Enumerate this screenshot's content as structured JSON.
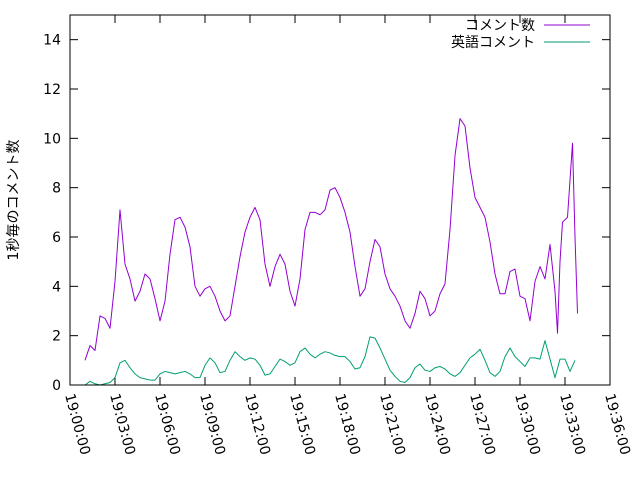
{
  "chart_data": {
    "type": "line",
    "title": "",
    "xlabel": "",
    "ylabel": "1秒毎のコメント数",
    "ylim": [
      0,
      15
    ],
    "yticks": [
      0,
      2,
      4,
      6,
      8,
      10,
      12,
      14
    ],
    "xlim": [
      "19:00:00",
      "19:36:00"
    ],
    "xticks": [
      "19:00:00",
      "19:03:00",
      "19:06:00",
      "19:09:00",
      "19:12:00",
      "19:15:00",
      "19:18:00",
      "19:21:00",
      "19:24:00",
      "19:27:00",
      "19:30:00",
      "19:33:00",
      "19:36:00"
    ],
    "grid": false,
    "legend_position": "top-right",
    "series": [
      {
        "name": "コメント数",
        "color": "#9400d3",
        "points": [
          [
            "19:01:00",
            1.0
          ],
          [
            "19:01:20",
            1.6
          ],
          [
            "19:01:40",
            1.4
          ],
          [
            "19:02:00",
            2.8
          ],
          [
            "19:02:20",
            2.7
          ],
          [
            "19:02:40",
            2.3
          ],
          [
            "19:03:00",
            4.2
          ],
          [
            "19:03:20",
            7.1
          ],
          [
            "19:03:40",
            4.9
          ],
          [
            "19:04:00",
            4.3
          ],
          [
            "19:04:20",
            3.4
          ],
          [
            "19:04:40",
            3.8
          ],
          [
            "19:05:00",
            4.5
          ],
          [
            "19:05:20",
            4.3
          ],
          [
            "19:05:40",
            3.5
          ],
          [
            "19:06:00",
            2.6
          ],
          [
            "19:06:20",
            3.4
          ],
          [
            "19:06:40",
            5.3
          ],
          [
            "19:07:00",
            6.7
          ],
          [
            "19:07:20",
            6.8
          ],
          [
            "19:07:40",
            6.4
          ],
          [
            "19:08:00",
            5.6
          ],
          [
            "19:08:20",
            4.0
          ],
          [
            "19:08:40",
            3.6
          ],
          [
            "19:09:00",
            3.9
          ],
          [
            "19:09:20",
            4.0
          ],
          [
            "19:09:40",
            3.6
          ],
          [
            "19:10:00",
            3.0
          ],
          [
            "19:10:20",
            2.6
          ],
          [
            "19:10:40",
            2.8
          ],
          [
            "19:11:00",
            4.0
          ],
          [
            "19:11:20",
            5.2
          ],
          [
            "19:11:40",
            6.2
          ],
          [
            "19:12:00",
            6.8
          ],
          [
            "19:12:20",
            7.2
          ],
          [
            "19:12:40",
            6.7
          ],
          [
            "19:13:00",
            4.9
          ],
          [
            "19:13:20",
            4.0
          ],
          [
            "19:13:40",
            4.8
          ],
          [
            "19:14:00",
            5.3
          ],
          [
            "19:14:20",
            4.9
          ],
          [
            "19:14:40",
            3.8
          ],
          [
            "19:15:00",
            3.2
          ],
          [
            "19:15:20",
            4.3
          ],
          [
            "19:15:40",
            6.3
          ],
          [
            "19:16:00",
            7.0
          ],
          [
            "19:16:20",
            7.0
          ],
          [
            "19:16:40",
            6.9
          ],
          [
            "19:17:00",
            7.1
          ],
          [
            "19:17:20",
            7.9
          ],
          [
            "19:17:40",
            8.0
          ],
          [
            "19:18:00",
            7.6
          ],
          [
            "19:18:20",
            7.0
          ],
          [
            "19:18:40",
            6.2
          ],
          [
            "19:19:00",
            4.8
          ],
          [
            "19:19:20",
            3.6
          ],
          [
            "19:19:40",
            3.9
          ],
          [
            "19:20:00",
            5.0
          ],
          [
            "19:20:20",
            5.9
          ],
          [
            "19:20:40",
            5.6
          ],
          [
            "19:21:00",
            4.5
          ],
          [
            "19:21:20",
            3.9
          ],
          [
            "19:21:40",
            3.6
          ],
          [
            "19:22:00",
            3.2
          ],
          [
            "19:22:20",
            2.6
          ],
          [
            "19:22:40",
            2.3
          ],
          [
            "19:23:00",
            2.9
          ],
          [
            "19:23:20",
            3.8
          ],
          [
            "19:23:40",
            3.5
          ],
          [
            "19:24:00",
            2.8
          ],
          [
            "19:24:20",
            3.0
          ],
          [
            "19:24:40",
            3.7
          ],
          [
            "19:25:00",
            4.1
          ],
          [
            "19:25:20",
            6.3
          ],
          [
            "19:25:40",
            9.3
          ],
          [
            "19:26:00",
            10.8
          ],
          [
            "19:26:20",
            10.5
          ],
          [
            "19:26:40",
            8.8
          ],
          [
            "19:27:00",
            7.6
          ],
          [
            "19:27:20",
            7.2
          ],
          [
            "19:27:40",
            6.8
          ],
          [
            "19:28:00",
            5.8
          ],
          [
            "19:28:20",
            4.5
          ],
          [
            "19:28:40",
            3.7
          ],
          [
            "19:29:00",
            3.7
          ],
          [
            "19:29:20",
            4.6
          ],
          [
            "19:29:40",
            4.7
          ],
          [
            "19:30:00",
            3.6
          ],
          [
            "19:30:20",
            3.5
          ],
          [
            "19:30:40",
            2.6
          ],
          [
            "19:31:00",
            4.2
          ],
          [
            "19:31:20",
            4.8
          ],
          [
            "19:31:40",
            4.3
          ],
          [
            "19:32:00",
            5.7
          ],
          [
            "19:32:20",
            3.8
          ],
          [
            "19:32:30",
            2.1
          ],
          [
            "19:32:40",
            5.0
          ],
          [
            "19:32:50",
            6.6
          ],
          [
            "19:33:10",
            6.8
          ],
          [
            "19:33:30",
            9.8
          ],
          [
            "19:33:40",
            6.0
          ],
          [
            "19:33:50",
            2.9
          ]
        ]
      },
      {
        "name": "英語コメント",
        "color": "#009e73",
        "points": [
          [
            "19:01:00",
            0.0
          ],
          [
            "19:01:20",
            0.15
          ],
          [
            "19:01:40",
            0.05
          ],
          [
            "19:02:00",
            0.0
          ],
          [
            "19:02:20",
            0.05
          ],
          [
            "19:02:40",
            0.1
          ],
          [
            "19:03:00",
            0.3
          ],
          [
            "19:03:20",
            0.9
          ],
          [
            "19:03:40",
            1.0
          ],
          [
            "19:04:00",
            0.7
          ],
          [
            "19:04:20",
            0.45
          ],
          [
            "19:04:40",
            0.3
          ],
          [
            "19:05:00",
            0.25
          ],
          [
            "19:05:20",
            0.2
          ],
          [
            "19:05:40",
            0.2
          ],
          [
            "19:06:00",
            0.45
          ],
          [
            "19:06:20",
            0.55
          ],
          [
            "19:06:40",
            0.5
          ],
          [
            "19:07:00",
            0.45
          ],
          [
            "19:07:20",
            0.5
          ],
          [
            "19:07:40",
            0.55
          ],
          [
            "19:08:00",
            0.45
          ],
          [
            "19:08:20",
            0.3
          ],
          [
            "19:08:40",
            0.3
          ],
          [
            "19:09:00",
            0.8
          ],
          [
            "19:09:20",
            1.1
          ],
          [
            "19:09:40",
            0.9
          ],
          [
            "19:10:00",
            0.5
          ],
          [
            "19:10:20",
            0.55
          ],
          [
            "19:10:40",
            1.0
          ],
          [
            "19:11:00",
            1.35
          ],
          [
            "19:11:20",
            1.15
          ],
          [
            "19:11:40",
            1.0
          ],
          [
            "19:12:00",
            1.1
          ],
          [
            "19:12:20",
            1.05
          ],
          [
            "19:12:40",
            0.8
          ],
          [
            "19:13:00",
            0.4
          ],
          [
            "19:13:20",
            0.45
          ],
          [
            "19:13:40",
            0.75
          ],
          [
            "19:14:00",
            1.05
          ],
          [
            "19:14:20",
            0.95
          ],
          [
            "19:14:40",
            0.8
          ],
          [
            "19:15:00",
            0.9
          ],
          [
            "19:15:20",
            1.35
          ],
          [
            "19:15:40",
            1.5
          ],
          [
            "19:16:00",
            1.25
          ],
          [
            "19:16:20",
            1.1
          ],
          [
            "19:16:40",
            1.25
          ],
          [
            "19:17:00",
            1.35
          ],
          [
            "19:17:20",
            1.3
          ],
          [
            "19:17:40",
            1.2
          ],
          [
            "19:18:00",
            1.15
          ],
          [
            "19:18:20",
            1.15
          ],
          [
            "19:18:40",
            0.95
          ],
          [
            "19:19:00",
            0.65
          ],
          [
            "19:19:20",
            0.7
          ],
          [
            "19:19:40",
            1.15
          ],
          [
            "19:20:00",
            1.95
          ],
          [
            "19:20:20",
            1.9
          ],
          [
            "19:20:40",
            1.5
          ],
          [
            "19:21:00",
            1.05
          ],
          [
            "19:21:20",
            0.6
          ],
          [
            "19:21:40",
            0.35
          ],
          [
            "19:22:00",
            0.15
          ],
          [
            "19:22:20",
            0.1
          ],
          [
            "19:22:40",
            0.3
          ],
          [
            "19:23:00",
            0.7
          ],
          [
            "19:23:20",
            0.85
          ],
          [
            "19:23:40",
            0.6
          ],
          [
            "19:24:00",
            0.55
          ],
          [
            "19:24:20",
            0.7
          ],
          [
            "19:24:40",
            0.75
          ],
          [
            "19:25:00",
            0.65
          ],
          [
            "19:25:20",
            0.45
          ],
          [
            "19:25:40",
            0.35
          ],
          [
            "19:26:00",
            0.5
          ],
          [
            "19:26:20",
            0.8
          ],
          [
            "19:26:40",
            1.1
          ],
          [
            "19:27:00",
            1.25
          ],
          [
            "19:27:20",
            1.45
          ],
          [
            "19:27:40",
            1.0
          ],
          [
            "19:28:00",
            0.5
          ],
          [
            "19:28:20",
            0.35
          ],
          [
            "19:28:40",
            0.55
          ],
          [
            "19:29:00",
            1.15
          ],
          [
            "19:29:20",
            1.5
          ],
          [
            "19:29:40",
            1.15
          ],
          [
            "19:30:00",
            0.95
          ],
          [
            "19:30:20",
            0.75
          ],
          [
            "19:30:40",
            1.1
          ],
          [
            "19:31:00",
            1.1
          ],
          [
            "19:31:20",
            1.05
          ],
          [
            "19:31:40",
            1.8
          ],
          [
            "19:32:00",
            1.05
          ],
          [
            "19:32:20",
            0.3
          ],
          [
            "19:32:40",
            1.05
          ],
          [
            "19:33:00",
            1.05
          ],
          [
            "19:33:20",
            0.55
          ],
          [
            "19:33:40",
            1.0
          ]
        ]
      }
    ]
  }
}
